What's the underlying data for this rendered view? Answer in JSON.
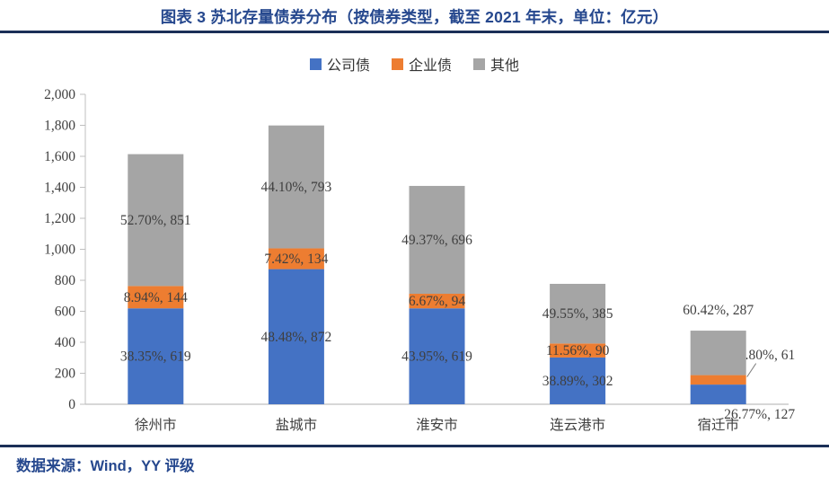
{
  "header": {
    "title": "图表 3 苏北存量债券分布（按债券类型，截至 2021 年末，单位：亿元）"
  },
  "footer": {
    "source": "数据来源：Wind，YY 评级"
  },
  "colors": {
    "company_bond_blue": "#4472C4",
    "enterprise_bond_orange": "#ED7D31",
    "other_gray": "#A5A5A5",
    "title_blue": "#26488E",
    "rule_navy": "#1B2F57",
    "axis_gray": "#BFBFBF",
    "label_gray": "#3F3F3F",
    "leader_gray": "#7F7F7F"
  },
  "chart_data": {
    "type": "bar",
    "stacked": true,
    "title": "图表 3 苏北存量债券分布（按债券类型，截至 2021 年末，单位：亿元）",
    "categories": [
      "徐州市",
      "盐城市",
      "淮安市",
      "连云港市",
      "宿迁市"
    ],
    "series": [
      {
        "name": "公司债",
        "color": "#4472C4",
        "values": [
          619,
          872,
          619,
          302,
          127
        ],
        "pcts": [
          "38.35%",
          "48.48%",
          "43.95%",
          "38.89%",
          "26.77%"
        ]
      },
      {
        "name": "企业债",
        "color": "#ED7D31",
        "values": [
          144,
          134,
          94,
          90,
          61
        ],
        "pcts": [
          "8.94%",
          "7.42%",
          "6.67%",
          "11.56%",
          "12.80%"
        ]
      },
      {
        "name": "其他",
        "color": "#A5A5A5",
        "values": [
          851,
          793,
          696,
          385,
          287
        ],
        "pcts": [
          "52.70%",
          "44.10%",
          "49.37%",
          "49.55%",
          "60.42%"
        ]
      }
    ],
    "totals": [
      1614,
      1799,
      1409,
      777,
      475
    ],
    "ylim": [
      0,
      2000
    ],
    "ytick_step": 200,
    "yticklabels": [
      "0",
      "200",
      "400",
      "600",
      "800",
      "1,000",
      "1,200",
      "1,400",
      "1,600",
      "1,800",
      "2,000"
    ],
    "xlabel": "",
    "ylabel": "",
    "grid": false,
    "legend_position": "top",
    "label_format": "pct, value",
    "label_overrides": [
      {
        "series_index": 0,
        "category_index": 4,
        "placement": "below-axis"
      },
      {
        "series_index": 1,
        "category_index": 4,
        "placement": "callout-right",
        "leader": true
      },
      {
        "series_index": 2,
        "category_index": 4,
        "placement": "above-bar"
      }
    ]
  }
}
